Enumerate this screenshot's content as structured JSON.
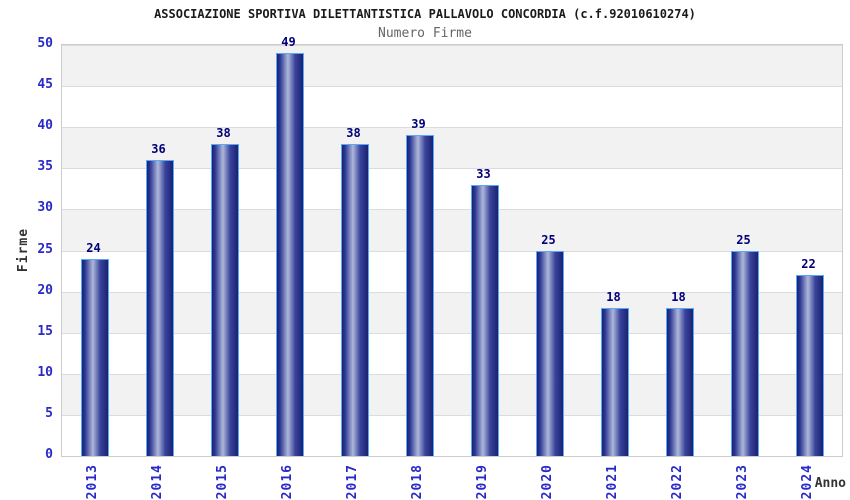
{
  "chart_data": {
    "type": "bar",
    "title": "ASSOCIAZIONE SPORTIVA DILETTANTISTICA PALLAVOLO CONCORDIA (c.f.92010610274)",
    "subtitle": "Numero Firme",
    "xlabel": "Anno",
    "ylabel": "Firme",
    "categories": [
      "2013",
      "2014",
      "2015",
      "2016",
      "2017",
      "2018",
      "2019",
      "2020",
      "2021",
      "2022",
      "2023",
      "2024"
    ],
    "values": [
      24,
      36,
      38,
      49,
      38,
      39,
      33,
      25,
      18,
      18,
      25,
      22
    ],
    "ylim": [
      0,
      50
    ],
    "ytick_step": 5,
    "grid": true,
    "legend": "none",
    "bands_alternating": true,
    "colors": {
      "title": "#1a1a1a",
      "subtitle": "#666666",
      "tick_label": "#2929c8",
      "value_label": "#00007a",
      "axis_title": "#333333",
      "band": "#f2f2f2",
      "grid_line": "#dcdcdc",
      "plot_border": "#cccccc",
      "bar_border": "#55aaff",
      "bar_gradient_stops": [
        "#1a2270 0%",
        "#2e3994 12%",
        "#aeb7da 42%",
        "#39439b 70%",
        "#1a2270 100%"
      ]
    }
  }
}
